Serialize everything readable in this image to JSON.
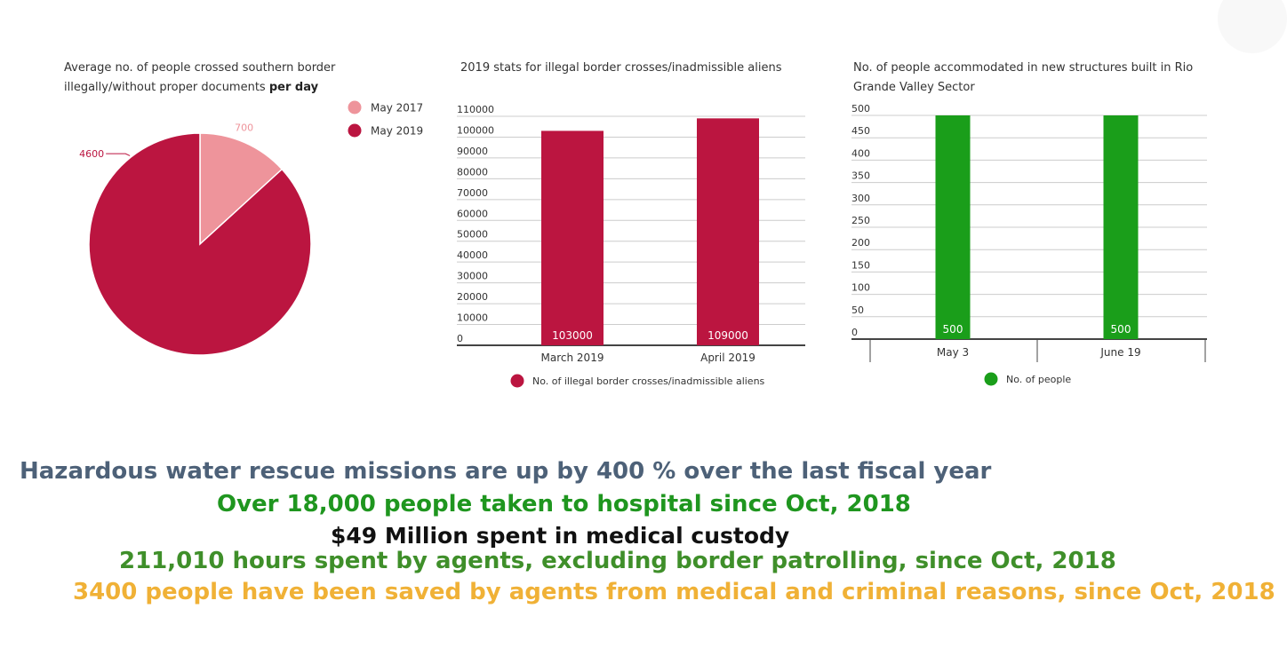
{
  "chart_data": [
    {
      "type": "pie",
      "title_prefix": "Average no. of people crossed southern border illegally/without proper documents",
      "title_emphasis": "per day",
      "series": [
        {
          "name": "May 2017",
          "value": 700,
          "label": "700",
          "color": "#ee949b"
        },
        {
          "name": "May 2019",
          "value": 4600,
          "label": "4600",
          "color": "#bb1540"
        }
      ],
      "legend": "top-right"
    },
    {
      "type": "bar",
      "title": "2019 stats for illegal border crosses/inadmissible aliens",
      "categories": [
        "March 2019",
        "April 2019"
      ],
      "series": [
        {
          "name": "No. of illegal border crosses/inadmissible aliens",
          "values": [
            103000,
            109000
          ],
          "color": "#bb1540"
        }
      ],
      "data_labels": [
        "103000",
        "109000"
      ],
      "ylim": [
        0,
        110000
      ],
      "yticks": [
        "0",
        "10000",
        "20000",
        "30000",
        "40000",
        "50000",
        "60000",
        "70000",
        "80000",
        "90000",
        "100000",
        "110000"
      ],
      "grid": true,
      "legend": "bottom"
    },
    {
      "type": "bar",
      "title": "No. of people accommodated in new structures built in Rio Grande Valley Sector",
      "categories": [
        "May 3",
        "June 19"
      ],
      "series": [
        {
          "name": "No. of people",
          "values": [
            500,
            500
          ],
          "color": "#1a9e1a"
        }
      ],
      "data_labels": [
        "500",
        "500"
      ],
      "ylim": [
        0,
        500
      ],
      "yticks": [
        "0",
        "50",
        "100",
        "150",
        "200",
        "250",
        "300",
        "350",
        "400",
        "450",
        "500"
      ],
      "grid": true,
      "legend": "bottom"
    }
  ],
  "headlines": [
    {
      "text": "Hazardous water rescue missions are up by 400 % over the last fiscal year",
      "color": "#4d6178"
    },
    {
      "text": "Over 18,000 people taken to hospital since Oct, 2018",
      "color": "#1f961f"
    },
    {
      "text": "$49 Million spent in medical custody",
      "color": "#111111"
    },
    {
      "text": "211,010 hours spent by agents, excluding border patrolling, since Oct, 2018",
      "color": "#3f8f2a"
    },
    {
      "text": "3400 people have been saved by agents from medical and criminal reasons, since Oct, 2018",
      "color": "#f0b136"
    }
  ]
}
